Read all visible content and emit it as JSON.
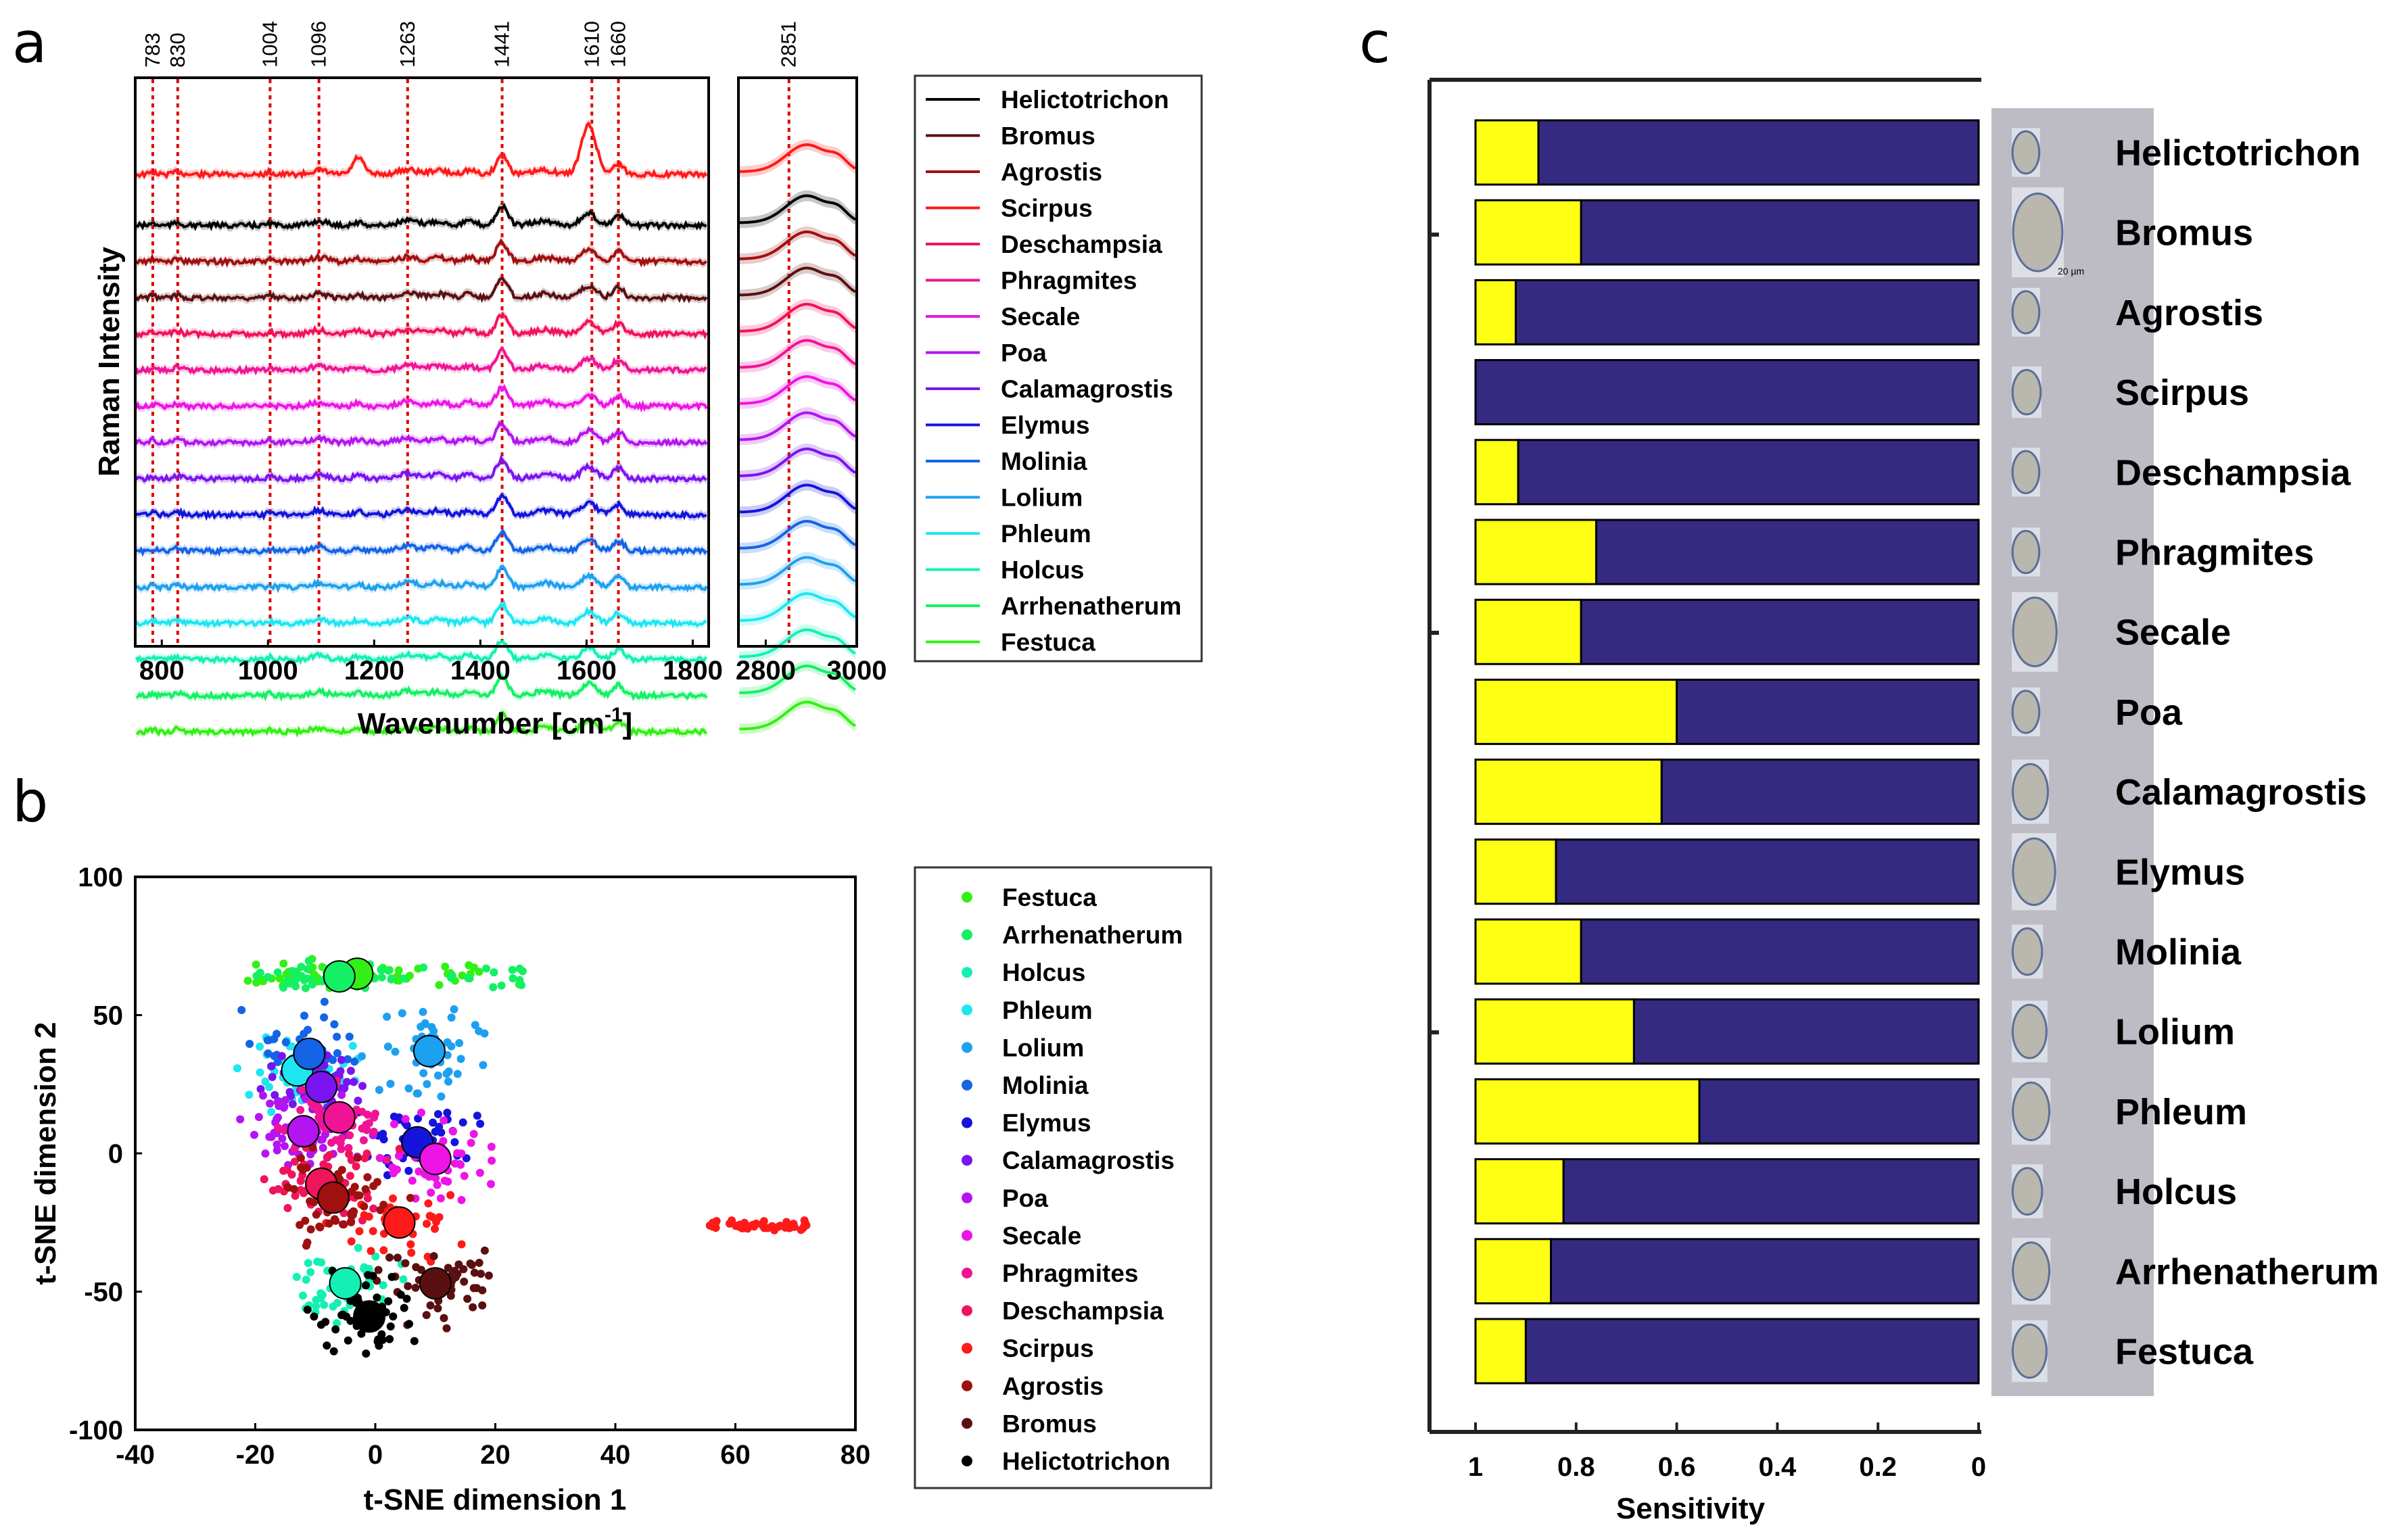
{
  "panel_letters": {
    "a": "a",
    "b": "b",
    "c": "c"
  },
  "genera_order": [
    "Helictotrichon",
    "Bromus",
    "Agrostis",
    "Scirpus",
    "Deschampsia",
    "Phragmites",
    "Secale",
    "Poa",
    "Calamagrostis",
    "Elymus",
    "Molinia",
    "Lolium",
    "Phleum",
    "Holcus",
    "Arrhenatherum",
    "Festuca"
  ],
  "colors": {
    "Helictotrichon": "#000000",
    "Bromus": "#5a1010",
    "Agrostis": "#a01010",
    "Scirpus": "#ff1a1a",
    "Deschampsia": "#f0145a",
    "Phragmites": "#f01494",
    "Secale": "#ee14e6",
    "Poa": "#b414f0",
    "Calamagrostis": "#7a14f0",
    "Elymus": "#1414dc",
    "Molinia": "#1464e6",
    "Lolium": "#1ea0f0",
    "Phleum": "#1ee6f0",
    "Holcus": "#14f0b4",
    "Arrhenatherum": "#14f064",
    "Festuca": "#32f014",
    "peak_line": "#e00000",
    "bar_yellow": "#ffff14",
    "bar_blue": "#342a82"
  },
  "chart_data": [
    {
      "type": "line",
      "panel": "a",
      "title": "",
      "xlabel": "Wavenumber [cm",
      "xlabel_sup": "-1",
      "xlabel_close": "]",
      "ylabel": "Raman Intensity",
      "xlim_left": [
        750,
        1830
      ],
      "xlim_right": [
        2740,
        3000
      ],
      "xticks_left": [
        "800",
        "1000",
        "1200",
        "1400",
        "1600",
        "1800"
      ],
      "xticks_right": [
        "2800",
        "3000"
      ],
      "peak_lines": [
        "783",
        "830",
        "1004",
        "1096",
        "1263",
        "1441",
        "1610",
        "1660",
        "2851"
      ],
      "series_order_top_to_bottom": [
        "Scirpus",
        "Helictotrichon",
        "Agrostis",
        "Bromus",
        "Deschampsia",
        "Phragmites",
        "Secale",
        "Poa",
        "Calamagrostis",
        "Elymus",
        "Molinia",
        "Lolium",
        "Phleum",
        "Holcus",
        "Arrhenatherum",
        "Festuca"
      ],
      "legend": [
        "Helictotrichon",
        "Bromus",
        "Agrostis",
        "Scirpus",
        "Deschampsia",
        "Phragmites",
        "Secale",
        "Poa",
        "Calamagrostis",
        "Elymus",
        "Molinia",
        "Lolium",
        "Phleum",
        "Holcus",
        "Arrhenatherum",
        "Festuca"
      ],
      "note": "Mean spectra offset vertically with shaded standard-deviation bands"
    },
    {
      "type": "scatter",
      "panel": "b",
      "title": "",
      "xlabel": "t-SNE dimension 1",
      "ylabel": "t-SNE dimension 2",
      "xlim": [
        -40,
        80
      ],
      "ylim": [
        -100,
        100
      ],
      "xticks": [
        "-40",
        "-20",
        "0",
        "20",
        "40",
        "60",
        "80"
      ],
      "yticks": [
        "100",
        "50",
        "0",
        "-50",
        "-100"
      ],
      "legend": [
        "Festuca",
        "Arrhenatherum",
        "Holcus",
        "Phleum",
        "Lolium",
        "Molinia",
        "Elymus",
        "Calamagrostis",
        "Poa",
        "Secale",
        "Phragmites",
        "Deschampsia",
        "Scirpus",
        "Agrostis",
        "Bromus",
        "Helictotrichon"
      ],
      "centroids": [
        {
          "name": "Festuca",
          "x": -3,
          "y": 65
        },
        {
          "name": "Arrhenatherum",
          "x": -6,
          "y": 64
        },
        {
          "name": "Holcus",
          "x": -5,
          "y": -47
        },
        {
          "name": "Phleum",
          "x": -13,
          "y": 30
        },
        {
          "name": "Lolium",
          "x": 9,
          "y": 37
        },
        {
          "name": "Molinia",
          "x": -11,
          "y": 36
        },
        {
          "name": "Elymus",
          "x": 7,
          "y": 4
        },
        {
          "name": "Calamagrostis",
          "x": -9,
          "y": 24
        },
        {
          "name": "Poa",
          "x": -12,
          "y": 8
        },
        {
          "name": "Secale",
          "x": 10,
          "y": -2
        },
        {
          "name": "Phragmites",
          "x": -6,
          "y": 13
        },
        {
          "name": "Deschampsia",
          "x": -9,
          "y": -11
        },
        {
          "name": "Scirpus",
          "x": 4,
          "y": -25
        },
        {
          "name": "Agrostis",
          "x": -7,
          "y": -16
        },
        {
          "name": "Bromus",
          "x": 10,
          "y": -47
        },
        {
          "name": "Helictotrichon",
          "x": -1,
          "y": -59
        }
      ],
      "scirpus_cluster": {
        "x_range": [
          55,
          72
        ],
        "y_center": -26
      }
    },
    {
      "type": "bar",
      "panel": "c",
      "title": "",
      "xlabel": "Sensitivity",
      "xlim": [
        1,
        0
      ],
      "xticks": [
        "1",
        "0.8",
        "0.6",
        "0.4",
        "0.2",
        "0"
      ],
      "categories": [
        "Helictotrichon",
        "Bromus",
        "Agrostis",
        "Scirpus",
        "Deschampsia",
        "Phragmites",
        "Secale",
        "Poa",
        "Calamagrostis",
        "Elymus",
        "Molinia",
        "Lolium",
        "Phleum",
        "Holcus",
        "Arrhenatherum",
        "Festuca"
      ],
      "series": [
        {
          "name": "sensitivity",
          "color": "#342a82",
          "values": [
            0.875,
            0.79,
            0.92,
            1.0,
            0.915,
            0.76,
            0.79,
            0.6,
            0.63,
            0.84,
            0.79,
            0.685,
            0.555,
            0.825,
            0.85,
            0.9
          ]
        }
      ],
      "yellow_remainder_note": "yellow segment = 1 - sensitivity",
      "image_scale_label": "20 µm"
    }
  ]
}
